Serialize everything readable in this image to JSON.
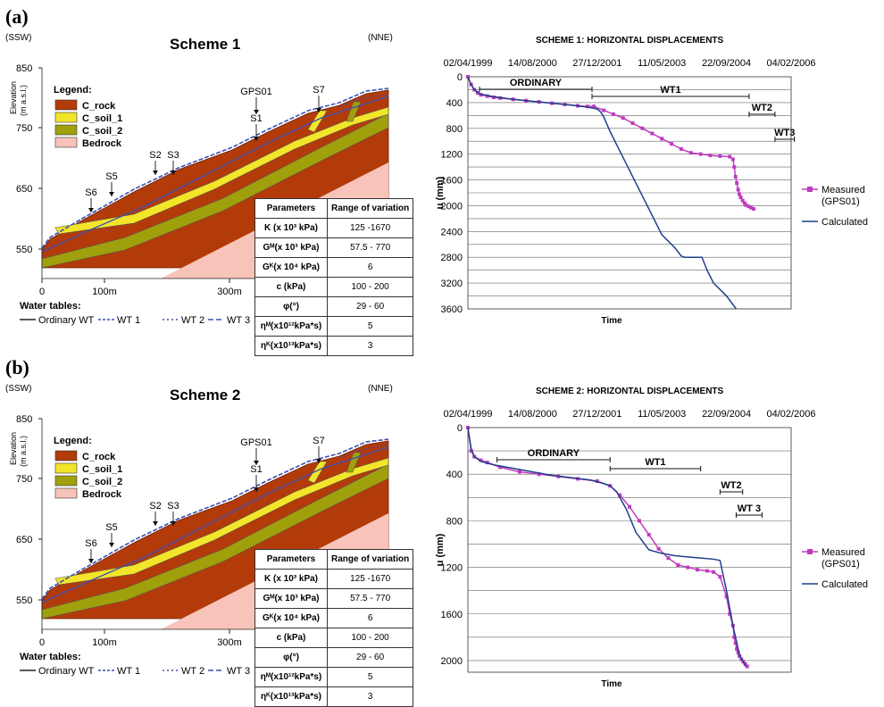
{
  "panels": [
    {
      "label": "(a)",
      "scheme_title": "Scheme 1",
      "dir_left": "(SSW)",
      "dir_right": "(NNE)",
      "elev_label": [
        "Elevation",
        "(m a.s.l.)"
      ],
      "elev_ticks": [
        "850",
        "750",
        "650",
        "550"
      ],
      "dist_ticks": [
        "0",
        "100m",
        "300m"
      ],
      "legend_title": "Legend:",
      "legend": [
        {
          "name": "C_rock",
          "color": "#b33b0a"
        },
        {
          "name": "C_soil_1",
          "color": "#f2e52a"
        },
        {
          "name": "C_soil_2",
          "color": "#9fa00c"
        },
        {
          "name": "Bedrock",
          "color": "#f8c3b9"
        }
      ],
      "points": [
        "GPS01",
        "S7",
        "S1",
        "S2",
        "S3",
        "S5",
        "S6"
      ],
      "water_title": "Water tables:",
      "water": [
        "Ordinary WT",
        "WT 1",
        "WT 2",
        "WT 3"
      ],
      "param_table": [
        [
          "Parameters",
          "Range of variation"
        ],
        [
          "K (x 10³ kPa)",
          "125 -1670"
        ],
        [
          "Gᴹ(x 10³ kPa)",
          "57.5 - 770"
        ],
        [
          "Gᴷ(x 10⁴ kPa)",
          "6"
        ],
        [
          "c (kPa)",
          "100 - 200"
        ],
        [
          "φ(°)",
          "29 - 60"
        ],
        [
          "ηᴹ(x10¹²kPa*s)",
          "5"
        ],
        [
          "ηᴷ(x10¹³kPa*s)",
          "3"
        ]
      ],
      "chart_title": "SCHEME 1: HORIZONTAL DISPLACEMENTS"
    },
    {
      "label": "(b)",
      "scheme_title": "Scheme 2",
      "dir_left": "(SSW)",
      "dir_right": "(NNE)",
      "elev_label": [
        "Elevation",
        "(m a.s.l.)"
      ],
      "elev_ticks": [
        "850",
        "750",
        "650",
        "550"
      ],
      "dist_ticks": [
        "0",
        "100m",
        "300m"
      ],
      "legend_title": "Legend:",
      "legend": [
        {
          "name": "C_rock",
          "color": "#b33b0a"
        },
        {
          "name": "C_soil_1",
          "color": "#f2e52a"
        },
        {
          "name": "C_soil_2",
          "color": "#9fa00c"
        },
        {
          "name": "Bedrock",
          "color": "#f8c3b9"
        }
      ],
      "points": [
        "GPS01",
        "S7",
        "S1",
        "S2",
        "S3",
        "S5",
        "S6"
      ],
      "water_title": "Water tables:",
      "water": [
        "Ordinary WT",
        "WT 1",
        "WT 2",
        "WT 3"
      ],
      "param_table": [
        [
          "Parameters",
          "Range of variation"
        ],
        [
          "K (x 10³ kPa)",
          "125 -1670"
        ],
        [
          "Gᴹ(x 10³ kPa)",
          "57.5 - 770"
        ],
        [
          "Gᴷ(x 10⁴ kPa)",
          "6"
        ],
        [
          "c (kPa)",
          "100 - 200"
        ],
        [
          "φ(°)",
          "29 - 60"
        ],
        [
          "ηᴹ(x10¹²kPa*s)",
          "5"
        ],
        [
          "ηᴷ(x10¹³kPa*s)",
          "3"
        ]
      ],
      "chart_title": "SCHEME 2: HORIZONTAL DISPLACEMENTS"
    }
  ],
  "chart_data": [
    {
      "type": "line",
      "title": "SCHEME 1: HORIZONTAL DISPLACEMENTS",
      "xlabel": "Time",
      "ylabel": "u (mm)",
      "x_ticks": [
        "02/04/1999",
        "14/08/2000",
        "27/12/2001",
        "11/05/2003",
        "22/09/2004",
        "04/02/2006"
      ],
      "y_ticks": [
        0,
        400,
        800,
        1200,
        1600,
        2000,
        2400,
        2800,
        3200,
        3600
      ],
      "ylim": [
        0,
        3600
      ],
      "y_inverted": true,
      "grid": true,
      "legend_position": "right",
      "periods": [
        {
          "label": "ORDINARY",
          "start": 0.18,
          "end": 1.92
        },
        {
          "label": "WT1",
          "start": 1.92,
          "end": 4.35
        },
        {
          "label": "WT2",
          "start": 4.35,
          "end": 4.75
        },
        {
          "label": "WT3",
          "start": 4.75,
          "end": 5.05
        }
      ],
      "series": [
        {
          "name": "Measured\n(GPS01)",
          "color": "#bf3bbf",
          "marker": "square",
          "x": [
            0.0,
            0.05,
            0.1,
            0.15,
            0.2,
            0.3,
            0.4,
            0.5,
            0.7,
            0.9,
            1.1,
            1.3,
            1.5,
            1.7,
            1.85,
            1.95,
            2.1,
            2.25,
            2.4,
            2.55,
            2.7,
            2.85,
            3.0,
            3.15,
            3.3,
            3.45,
            3.6,
            3.75,
            3.9,
            4.05,
            4.1,
            4.12,
            4.14,
            4.16,
            4.18,
            4.2,
            4.22,
            4.25,
            4.28,
            4.3,
            4.34,
            4.38,
            4.42
          ],
          "y": [
            0,
            120,
            200,
            250,
            280,
            300,
            320,
            330,
            350,
            370,
            390,
            410,
            430,
            450,
            460,
            460,
            520,
            580,
            640,
            720,
            800,
            880,
            960,
            1040,
            1120,
            1180,
            1200,
            1220,
            1230,
            1240,
            1280,
            1400,
            1550,
            1650,
            1750,
            1820,
            1870,
            1920,
            1960,
            1990,
            2010,
            2030,
            2050
          ]
        },
        {
          "name": "Calculated",
          "color": "#1f3f8c",
          "marker": "none",
          "x": [
            0.0,
            0.05,
            0.1,
            0.2,
            0.4,
            0.7,
            1.0,
            1.3,
            1.6,
            1.85,
            2.0,
            2.05,
            2.1,
            2.2,
            2.4,
            2.6,
            2.8,
            3.0,
            3.2,
            3.3,
            3.35,
            3.5,
            3.62,
            3.7,
            3.8,
            4.0,
            4.15
          ],
          "y": [
            0,
            120,
            200,
            270,
            310,
            350,
            380,
            410,
            440,
            470,
            500,
            540,
            620,
            850,
            1250,
            1650,
            2050,
            2450,
            2650,
            2780,
            2800,
            2800,
            2800,
            3000,
            3200,
            3400,
            3600
          ]
        }
      ]
    },
    {
      "type": "line",
      "title": "SCHEME 2: HORIZONTAL DISPLACEMENTS",
      "xlabel": "Time",
      "ylabel": "u (mm)",
      "x_ticks": [
        "02/04/1999",
        "14/08/2000",
        "27/12/2001",
        "11/05/2003",
        "22/09/2004",
        "04/02/2006"
      ],
      "y_ticks": [
        0,
        400,
        800,
        1200,
        1600,
        2000
      ],
      "ylim": [
        0,
        2100
      ],
      "y_inverted": true,
      "grid": true,
      "legend_position": "right",
      "periods": [
        {
          "label": "ORDINARY",
          "start": 0.45,
          "end": 2.2
        },
        {
          "label": "WT1",
          "start": 2.2,
          "end": 3.6
        },
        {
          "label": "WT2",
          "start": 3.9,
          "end": 4.25
        },
        {
          "label": "WT 3",
          "start": 4.15,
          "end": 4.55
        }
      ],
      "series": [
        {
          "name": "Measured\n(GPS01)",
          "color": "#bf3bbf",
          "marker": "square",
          "x": [
            0.0,
            0.05,
            0.1,
            0.2,
            0.3,
            0.5,
            0.8,
            1.1,
            1.4,
            1.7,
            2.0,
            2.2,
            2.35,
            2.5,
            2.65,
            2.8,
            2.95,
            3.1,
            3.25,
            3.4,
            3.55,
            3.7,
            3.8,
            3.9,
            4.0,
            4.05,
            4.1,
            4.12,
            4.14,
            4.16,
            4.18,
            4.2,
            4.23,
            4.26,
            4.29,
            4.32
          ],
          "y": [
            0,
            200,
            250,
            280,
            300,
            340,
            380,
            400,
            420,
            440,
            460,
            500,
            580,
            680,
            800,
            920,
            1040,
            1120,
            1180,
            1200,
            1220,
            1230,
            1240,
            1280,
            1450,
            1600,
            1700,
            1800,
            1850,
            1900,
            1930,
            1960,
            1990,
            2010,
            2030,
            2050
          ]
        },
        {
          "name": "Calculated",
          "color": "#1f3f8c",
          "marker": "none",
          "x": [
            0.0,
            0.05,
            0.1,
            0.2,
            0.4,
            0.7,
            1.0,
            1.3,
            1.6,
            1.9,
            2.1,
            2.2,
            2.3,
            2.45,
            2.6,
            2.8,
            3.0,
            3.2,
            3.4,
            3.6,
            3.8,
            3.9,
            4.0,
            4.1,
            4.2,
            4.3
          ],
          "y": [
            0,
            180,
            250,
            290,
            320,
            350,
            380,
            410,
            430,
            450,
            480,
            500,
            550,
            700,
            900,
            1050,
            1080,
            1100,
            1110,
            1120,
            1130,
            1140,
            1400,
            1700,
            1950,
            2050
          ]
        }
      ]
    }
  ]
}
